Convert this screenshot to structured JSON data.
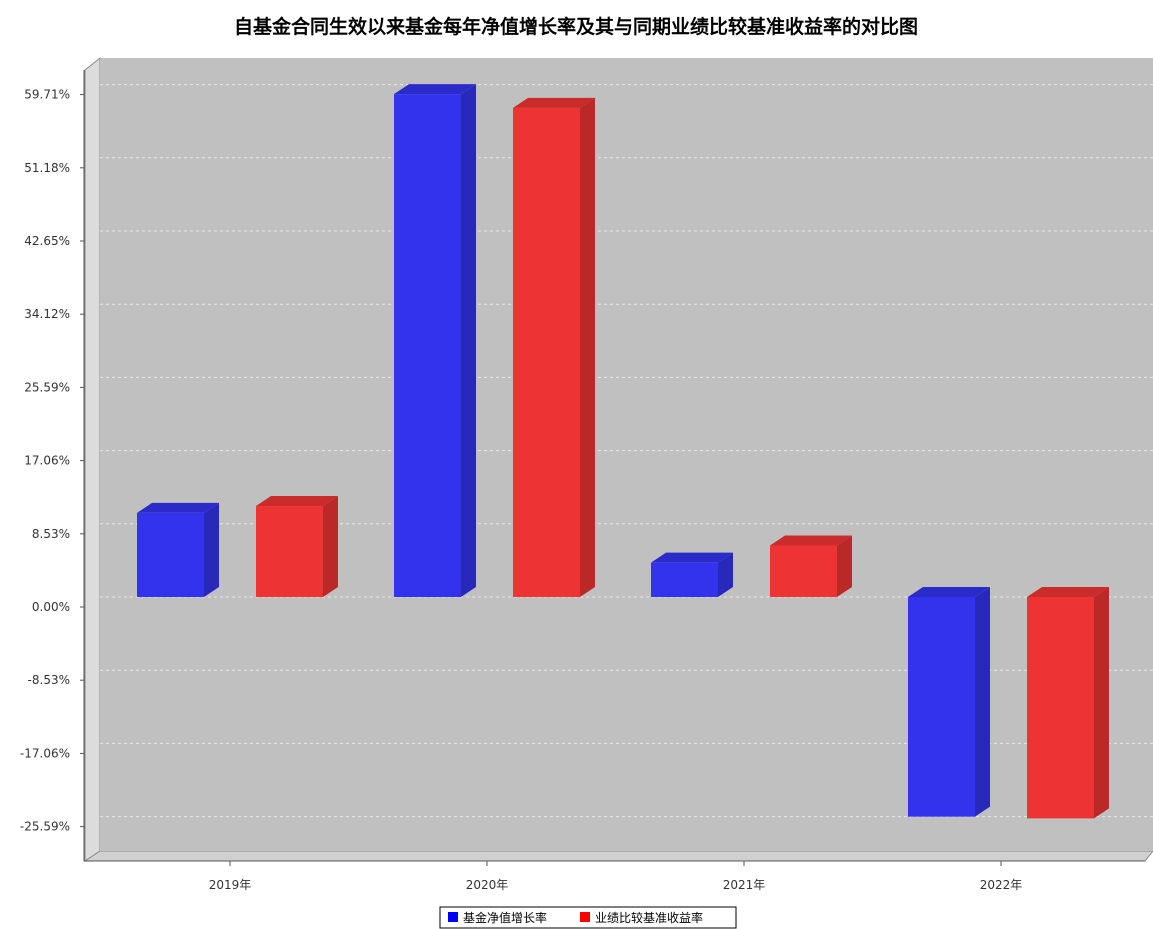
{
  "chart_data": {
    "type": "bar",
    "title": "自基金合同生效以来基金每年净值增长率及其与同期业绩比较基准收益率的对比图",
    "categories": [
      "2019年",
      "2020年",
      "2021年",
      "2022年"
    ],
    "series": [
      {
        "name": "基金净值增长率",
        "color": "#3333ee",
        "values": [
          9.8,
          58.6,
          4.0,
          -25.6
        ]
      },
      {
        "name": "业绩比较基准收益率",
        "color": "#ee3333",
        "values": [
          10.6,
          57.0,
          6.0,
          -25.8
        ]
      }
    ],
    "y_ticks": [
      59.71,
      51.18,
      42.65,
      34.12,
      25.59,
      17.06,
      8.53,
      0.0,
      -8.53,
      -17.06,
      -25.59
    ],
    "y_tick_labels": [
      "59.71%",
      "51.18%",
      "42.65%",
      "34.12%",
      "25.59%",
      "17.06%",
      "8.53%",
      "0.00%",
      "-8.53%",
      "-17.06%",
      "-25.59%"
    ],
    "ylim": [
      -29.3,
      63.4
    ],
    "grid": true,
    "legend_position": "bottom-center",
    "xlabel": "",
    "ylabel": ""
  }
}
